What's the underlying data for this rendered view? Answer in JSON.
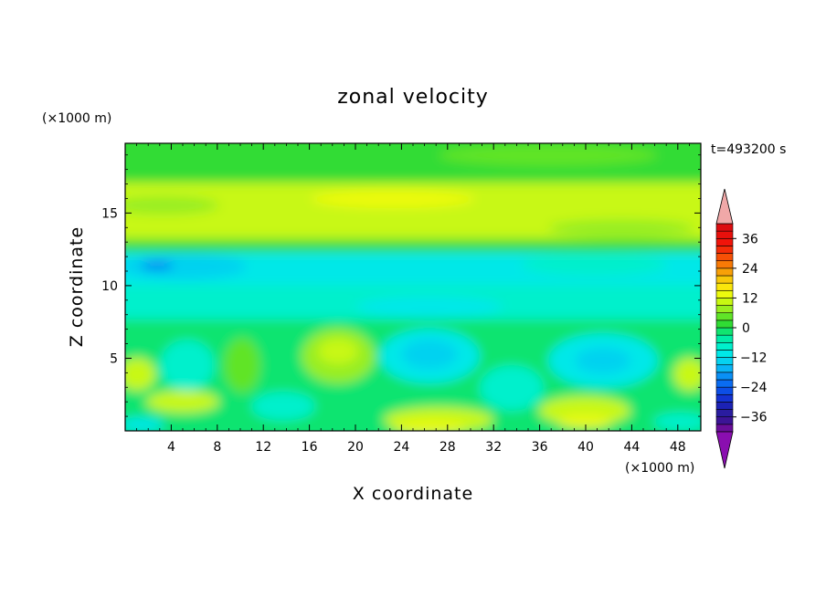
{
  "chart_data": {
    "type": "heatmap",
    "title": "zonal velocity",
    "xlabel": "X coordinate",
    "ylabel": "Z coordinate",
    "x_unit": "(×1000 m)",
    "y_unit": "(×1000 m)",
    "time_label": "t=493200 s",
    "xlim": [
      0,
      50
    ],
    "ylim": [
      0,
      19.8
    ],
    "x_ticks": [
      4,
      8,
      12,
      16,
      20,
      24,
      28,
      32,
      36,
      40,
      44,
      48
    ],
    "y_ticks": [
      5,
      10,
      15
    ],
    "colorbar": {
      "levels": [
        -42,
        -39,
        -36,
        -33,
        -30,
        -27,
        -24,
        -21,
        -18,
        -15,
        -12,
        -9,
        -6,
        -3,
        0,
        3,
        6,
        9,
        12,
        15,
        18,
        21,
        24,
        27,
        30,
        33,
        36,
        39,
        42
      ],
      "colors": [
        "#6a0e9a",
        "#3c1496",
        "#2a1ca0",
        "#1c22b4",
        "#1432d2",
        "#0c4ee6",
        "#0a6cf2",
        "#0a90f6",
        "#0ab4f6",
        "#06d2f0",
        "#00e8e8",
        "#00f0cc",
        "#00eca8",
        "#10e470",
        "#30dc34",
        "#60e428",
        "#98ee20",
        "#c8f812",
        "#ecfa0e",
        "#fae60c",
        "#f8c80a",
        "#f8a008",
        "#f87a06",
        "#f65006",
        "#f42c08",
        "#f0140a",
        "#e8100c",
        "#dc0c10"
      ],
      "under_color": "#8a0eb0",
      "over_color": "#f0a8a8",
      "tick_labels": [
        36,
        24,
        12,
        0,
        -12,
        -24,
        -36
      ]
    },
    "grid": false
  }
}
